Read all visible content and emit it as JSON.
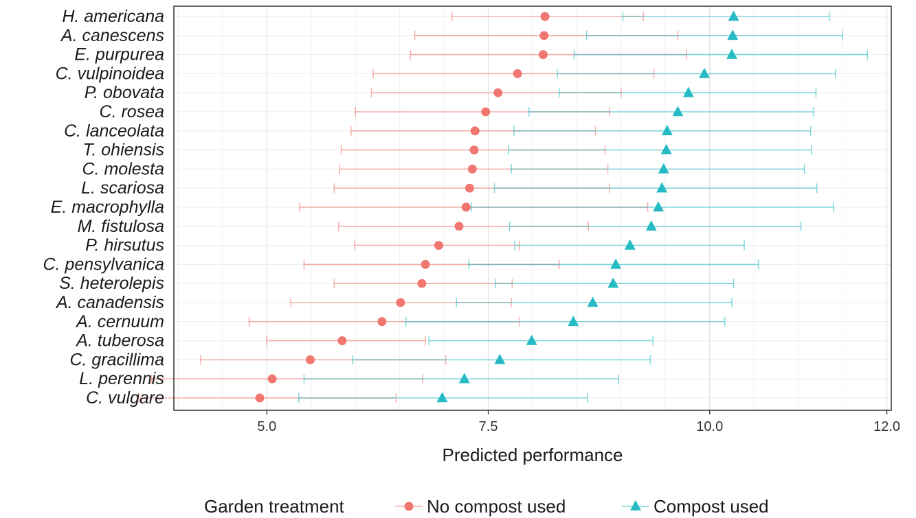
{
  "chart_data": {
    "type": "dot-errorbar",
    "xlabel": "Predicted performance",
    "x_ticks": [
      5.0,
      7.5,
      10.0,
      12.0
    ],
    "x_tick_labels": [
      "5.0",
      "7.5",
      "10.0",
      "12.0"
    ],
    "xlim": [
      3.95,
      12.05
    ],
    "grid": true,
    "legend": {
      "title": "Garden treatment",
      "position": "bottom",
      "entries": [
        "No compost used",
        "Compost used"
      ]
    },
    "categories": [
      "H. americana",
      "A. canescens",
      "E. purpurea",
      "C. vulpinoidea",
      "P. obovata",
      "C. rosea",
      "C. lanceolata",
      "T. ohiensis",
      "C. molesta",
      "L. scariosa",
      "E. macrophylla",
      "M. fistulosa",
      "P. hirsutus",
      "C. pensylvanica",
      "S. heterolepis",
      "A. canadensis",
      "A. cernuum",
      "A. tuberosa",
      "C. gracillima",
      "L. perennis",
      "C. vulgare"
    ],
    "series": [
      {
        "name": "No compost used",
        "color": "#F07670",
        "marker": "circle",
        "values": [
          8.14,
          8.13,
          8.12,
          7.83,
          7.61,
          7.47,
          7.35,
          7.34,
          7.32,
          7.29,
          7.25,
          7.17,
          6.94,
          6.79,
          6.75,
          6.51,
          6.3,
          5.85,
          5.49,
          5.06,
          4.92
        ],
        "lower": [
          7.09,
          6.67,
          6.62,
          6.2,
          6.18,
          6.0,
          5.95,
          5.84,
          5.82,
          5.76,
          5.37,
          5.81,
          5.99,
          5.42,
          5.76,
          5.27,
          4.8,
          5.0,
          4.25,
          3.7,
          3.55
        ],
        "upper": [
          9.25,
          9.64,
          9.74,
          9.37,
          9.0,
          8.87,
          8.71,
          8.82,
          8.85,
          8.87,
          9.3,
          8.63,
          7.85,
          8.3,
          7.77,
          7.76,
          7.85,
          6.79,
          7.02,
          6.76,
          6.46
        ]
      },
      {
        "name": "Compost used",
        "color": "#26BBC4",
        "marker": "triangle",
        "values": [
          10.27,
          10.26,
          10.25,
          9.94,
          9.76,
          9.64,
          9.52,
          9.51,
          9.48,
          9.46,
          9.42,
          9.34,
          9.1,
          8.94,
          8.91,
          8.68,
          8.46,
          7.99,
          7.63,
          7.23,
          6.98
        ],
        "lower": [
          9.02,
          8.61,
          8.47,
          8.28,
          8.3,
          7.96,
          7.79,
          7.73,
          7.76,
          7.57,
          7.31,
          7.74,
          7.8,
          7.28,
          7.58,
          7.14,
          6.57,
          6.83,
          5.97,
          5.42,
          5.36
        ],
        "upper": [
          11.35,
          11.5,
          11.78,
          11.42,
          11.2,
          11.17,
          11.14,
          11.15,
          11.07,
          11.21,
          11.4,
          11.03,
          10.39,
          10.55,
          10.27,
          10.25,
          10.17,
          9.36,
          9.33,
          8.97,
          8.62
        ]
      }
    ]
  }
}
